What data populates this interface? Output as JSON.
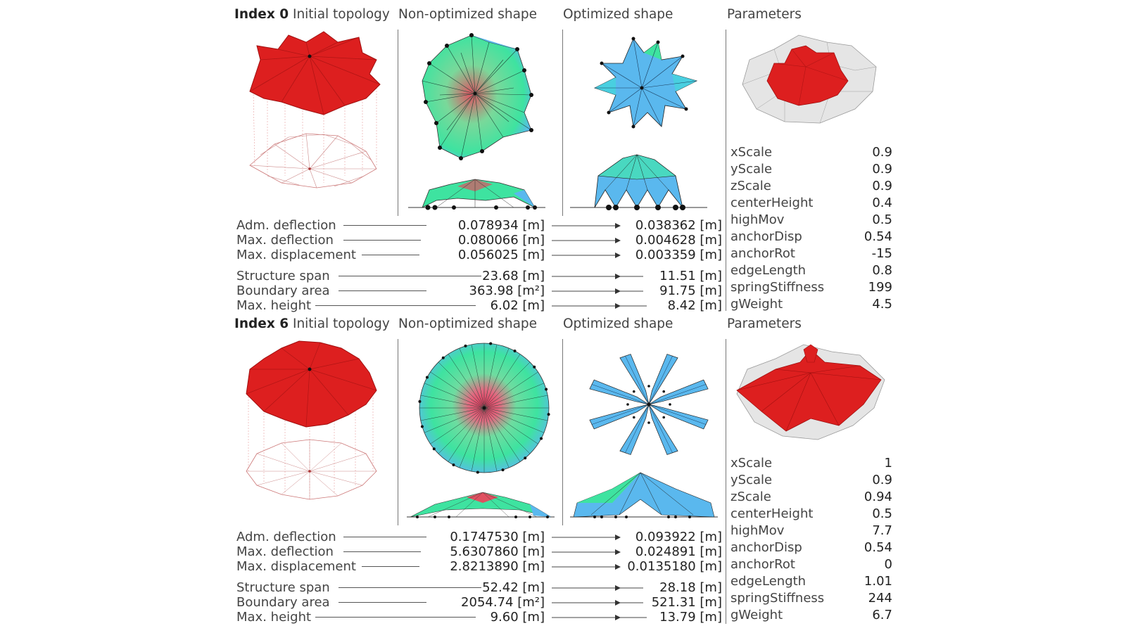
{
  "figure_rows": [
    {
      "index_label": "Index 0",
      "headers": {
        "initial": "Initial topology",
        "non_optimized": "Non-optimized shape",
        "optimized": "Optimized shape",
        "parameters": "Parameters"
      },
      "metrics": [
        {
          "label": "Adm. deflection",
          "before": "0.078934 [m]",
          "after": "0.038362 [m]"
        },
        {
          "label": "Max. deflection",
          "before": "0.080066 [m]",
          "after": "0.004628 [m]"
        },
        {
          "label": "Max. displacement",
          "before": "0.056025 [m]",
          "after": "0.003359 [m]"
        }
      ],
      "geometry": [
        {
          "label": "Structure span",
          "before": "23.68 [m]",
          "after": "11.51 [m]"
        },
        {
          "label": "Boundary area",
          "before": "363.98 [m²]",
          "after": "91.75 [m]"
        },
        {
          "label": "Max. height",
          "before": "6.02 [m]",
          "after": "8.42 [m]"
        }
      ],
      "parameters": [
        {
          "name": "xScale",
          "value": "0.9"
        },
        {
          "name": "yScale",
          "value": "0.9"
        },
        {
          "name": "zScale",
          "value": "0.9"
        },
        {
          "name": "centerHeight",
          "value": "0.4"
        },
        {
          "name": "highMov",
          "value": "0.5"
        },
        {
          "name": "anchorDisp",
          "value": "0.54"
        },
        {
          "name": "anchorRot",
          "value": "-15"
        },
        {
          "name": "edgeLength",
          "value": "0.8"
        },
        {
          "name": "springStiffness",
          "value": "199"
        },
        {
          "name": "gWeight",
          "value": "4.5"
        }
      ]
    },
    {
      "index_label": "Index 6",
      "headers": {
        "initial": "Initial topology",
        "non_optimized": "Non-optimized shape",
        "optimized": "Optimized shape",
        "parameters": "Parameters"
      },
      "metrics": [
        {
          "label": "Adm. deflection",
          "before": "0.1747530 [m]",
          "after": "0.093922 [m]"
        },
        {
          "label": "Max. deflection",
          "before": "5.6307860 [m]",
          "after": "0.024891 [m]"
        },
        {
          "label": "Max. displacement",
          "before": "2.8213890 [m]",
          "after": "0.0135180 [m]"
        }
      ],
      "geometry": [
        {
          "label": "Structure span",
          "before": "52.42 [m]",
          "after": "28.18 [m]"
        },
        {
          "label": "Boundary area",
          "before": "2054.74 [m²]",
          "after": "521.31 [m]"
        },
        {
          "label": "Max. height",
          "before": "9.60 [m]",
          "after": "13.79 [m]"
        }
      ],
      "parameters": [
        {
          "name": "xScale",
          "value": "1"
        },
        {
          "name": "yScale",
          "value": "0.9"
        },
        {
          "name": "zScale",
          "value": "0.94"
        },
        {
          "name": "centerHeight",
          "value": "0.5"
        },
        {
          "name": "highMov",
          "value": "7.7"
        },
        {
          "name": "anchorDisp",
          "value": "0.54"
        },
        {
          "name": "anchorRot",
          "value": "0"
        },
        {
          "name": "edgeLength",
          "value": "1.01"
        },
        {
          "name": "springStiffness",
          "value": "244"
        },
        {
          "name": "gWeight",
          "value": "6.7"
        }
      ]
    }
  ],
  "colors": {
    "initial_red": "#dd1f1f",
    "stress_green": "#3ee3a0",
    "stress_blue": "#5ab8ee",
    "stress_red": "#e05060",
    "ghost_grey": "#cfcfcf",
    "arrow": "#333333"
  }
}
